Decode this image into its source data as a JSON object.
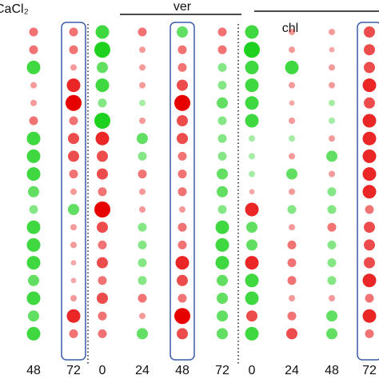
{
  "chart_data": {
    "type": "dotmatrix",
    "pos_color": "#e60000",
    "neg_color": "#1fd11f",
    "highlight_color": "#3b5aa8",
    "groups": [
      {
        "name": "CaCl₂",
        "columns": [
          {
            "label": "48",
            "highlight": false,
            "values": [
              1,
              1,
              -2,
              0.5,
              0.5,
              1,
              -2,
              -2,
              -2,
              -1.5,
              -1,
              -2,
              -2,
              -2,
              -1.5,
              -2,
              -1.5,
              -2
            ]
          },
          {
            "label": "72",
            "highlight": true,
            "values": [
              1,
              1,
              0.5,
              2,
              2.5,
              1,
              1.5,
              1.5,
              1,
              0.5,
              -1.5,
              0.5,
              0.5,
              0.3,
              0.3,
              0.5,
              2,
              1
            ]
          }
        ]
      },
      {
        "name": "ver",
        "columns": [
          {
            "label": "0",
            "highlight": false,
            "values": [
              -2,
              -2.5,
              -1.5,
              -2,
              -1,
              -2.5,
              2,
              1.5,
              1.5,
              1,
              2.5,
              1.5,
              1,
              1.5,
              1,
              1.5,
              1,
              1
            ]
          },
          {
            "label": "24",
            "highlight": false,
            "values": [
              1,
              0.5,
              0.5,
              0.5,
              -0.5,
              0.5,
              -1.5,
              -1,
              1,
              0.5,
              0.5,
              -1,
              -1,
              -1,
              -1,
              1,
              0.5,
              -1.5
            ]
          },
          {
            "label": "48",
            "highlight": true,
            "values": [
              -1.5,
              1,
              1,
              1.5,
              2.5,
              1.5,
              1.5,
              1,
              1,
              1,
              0.5,
              1,
              1,
              2,
              1.5,
              1,
              2.5,
              1.5
            ]
          },
          {
            "label": "72",
            "highlight": false,
            "values": [
              1,
              1,
              -1,
              -1,
              -1.5,
              -1,
              -1,
              -1,
              -1.5,
              -1.5,
              -1,
              -2,
              -2,
              -2,
              -1.5,
              -1.5,
              -1.5,
              -1.5
            ]
          }
        ]
      },
      {
        "name": "chl",
        "columns": [
          {
            "label": "0",
            "highlight": false,
            "values": [
              -2,
              -2.5,
              -2,
              -2,
              -2,
              -2,
              -0.5,
              -0.5,
              -0.5,
              0.3,
              2,
              -1.5,
              -1.5,
              2,
              -2,
              -2,
              1.5,
              -2
            ]
          },
          {
            "label": "24",
            "highlight": false,
            "values": [
              0.5,
              0.5,
              -2,
              0.5,
              0.3,
              0.5,
              -0.5,
              0.5,
              -1.5,
              0.5,
              -1,
              0.5,
              1,
              1,
              1,
              0.5,
              1,
              1.5
            ]
          },
          {
            "label": "48",
            "highlight": false,
            "values": [
              0.5,
              0.3,
              0.5,
              0.5,
              -0.5,
              -0.5,
              0.5,
              -1.5,
              0.5,
              -1,
              -1,
              1,
              -1,
              -1,
              -1,
              0.5,
              -1.5,
              -1.5
            ]
          },
          {
            "label": "72",
            "highlight": true,
            "values": [
              1.5,
              1.5,
              1.5,
              2,
              1.5,
              2,
              2,
              2,
              2,
              2,
              1,
              1.5,
              1.5,
              1.5,
              2,
              1,
              2,
              1
            ]
          }
        ]
      }
    ]
  }
}
